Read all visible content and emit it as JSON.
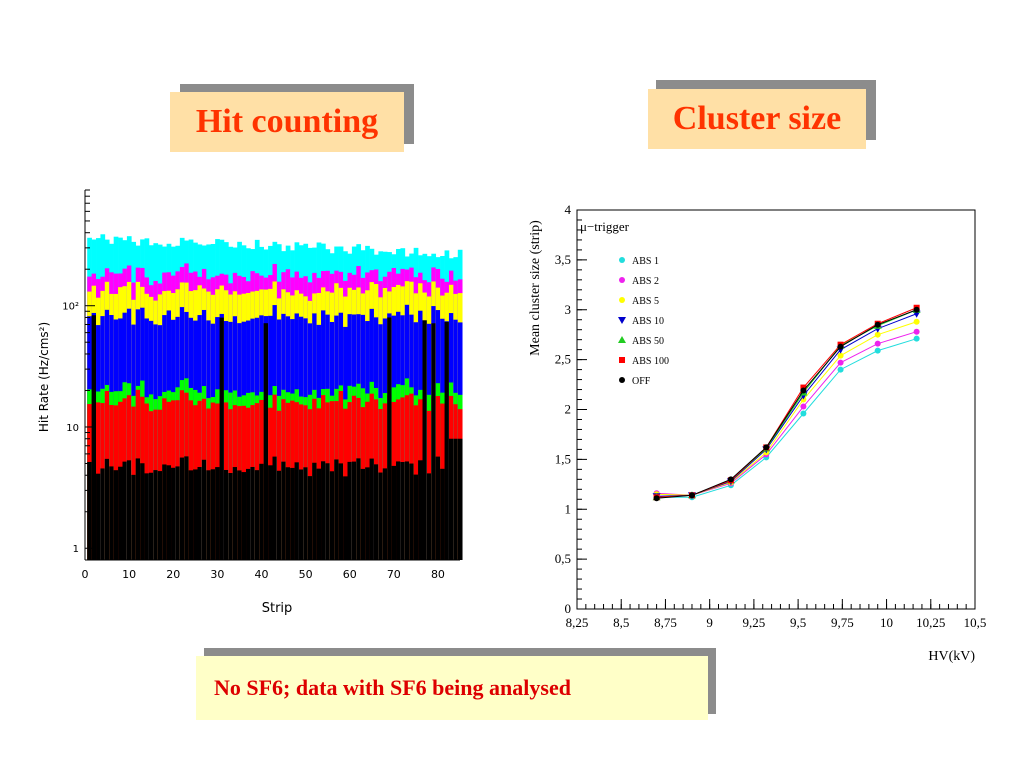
{
  "titles": {
    "left": "Hit counting",
    "right": "Cluster size",
    "bottom": "No SF6; data with SF6 being analysed"
  },
  "colors": {
    "title_text": "#ff3300",
    "title_bg": "#ffe0a6",
    "title_shadow": "#8c8c8c",
    "bottom_text": "#dd0000",
    "bottom_bg": "#ffffc8"
  },
  "chart_data": [
    {
      "type": "area",
      "title": "",
      "xlabel": "Strip",
      "ylabel": "Hit Rate (Hz/cms²)",
      "yscale": "log",
      "xlim": [
        0,
        85
      ],
      "x_ticks": [
        "0",
        "10",
        "20",
        "30",
        "40",
        "50",
        "60",
        "70",
        "80"
      ],
      "y_ticks": [
        {
          "value": 1,
          "label": "1"
        },
        {
          "value": 10,
          "label": "10"
        },
        {
          "value": 100,
          "label": "10²"
        }
      ],
      "stacked_layers_bottom_to_top": [
        "black",
        "red",
        "green",
        "blue",
        "yellow",
        "magenta",
        "cyan"
      ],
      "layer_colors": [
        "#000000",
        "#ff0000",
        "#00ff00",
        "#0000ff",
        "#ffff00",
        "#ff00ff",
        "#00ffff"
      ],
      "strips": [
        1,
        85
      ],
      "approx_layer_tops": {
        "black": 5,
        "red": 17,
        "green": 21,
        "blue": 85,
        "yellow": 140,
        "magenta": 190,
        "cyan": 360
      },
      "spike_strips": [
        2,
        31,
        41,
        69,
        77,
        79,
        82
      ]
    },
    {
      "type": "line",
      "title": "μ−trigger",
      "xlabel": "HV(kV)",
      "ylabel": "Mean cluster size (strip)",
      "xlim": [
        8.25,
        10.5
      ],
      "ylim": [
        0,
        4
      ],
      "x_ticks": [
        "8,25",
        "8,5",
        "8,75",
        "9",
        "9,25",
        "9,5",
        "9,75",
        "10",
        "10,25",
        "10,5"
      ],
      "y_ticks": [
        "0",
        "0,5",
        "1",
        "1,5",
        "2",
        "2,5",
        "3",
        "3,5",
        "4"
      ],
      "x": [
        8.7,
        8.9,
        9.12,
        9.32,
        9.53,
        9.74,
        9.95,
        10.17
      ],
      "series": [
        {
          "name": "ABS 1",
          "color": "#22dddd",
          "marker": "circle",
          "values": [
            1.12,
            1.12,
            1.24,
            1.52,
            1.96,
            2.4,
            2.59,
            2.71
          ]
        },
        {
          "name": "ABS 2",
          "color": "#ee22ee",
          "marker": "circle",
          "values": [
            1.16,
            1.14,
            1.26,
            1.55,
            2.03,
            2.47,
            2.66,
            2.78
          ]
        },
        {
          "name": "ABS 5",
          "color": "#ffff00",
          "marker": "circle",
          "values": [
            1.15,
            1.14,
            1.27,
            1.57,
            2.1,
            2.54,
            2.75,
            2.88
          ]
        },
        {
          "name": "ABS 10",
          "color": "#0000cc",
          "marker": "triangle-down",
          "values": [
            1.13,
            1.14,
            1.28,
            1.6,
            2.14,
            2.6,
            2.81,
            2.96
          ]
        },
        {
          "name": "ABS 50",
          "color": "#22cc22",
          "marker": "triangle-up",
          "values": [
            1.12,
            1.14,
            1.29,
            1.61,
            2.17,
            2.64,
            2.84,
            3.0
          ]
        },
        {
          "name": "ABS 100",
          "color": "#ff0000",
          "marker": "square",
          "values": [
            1.12,
            1.14,
            1.29,
            1.62,
            2.22,
            2.65,
            2.86,
            3.02
          ]
        },
        {
          "name": "OFF",
          "color": "#000000",
          "marker": "circle",
          "values": [
            1.11,
            1.14,
            1.3,
            1.62,
            2.19,
            2.63,
            2.85,
            3.0
          ]
        }
      ]
    }
  ]
}
